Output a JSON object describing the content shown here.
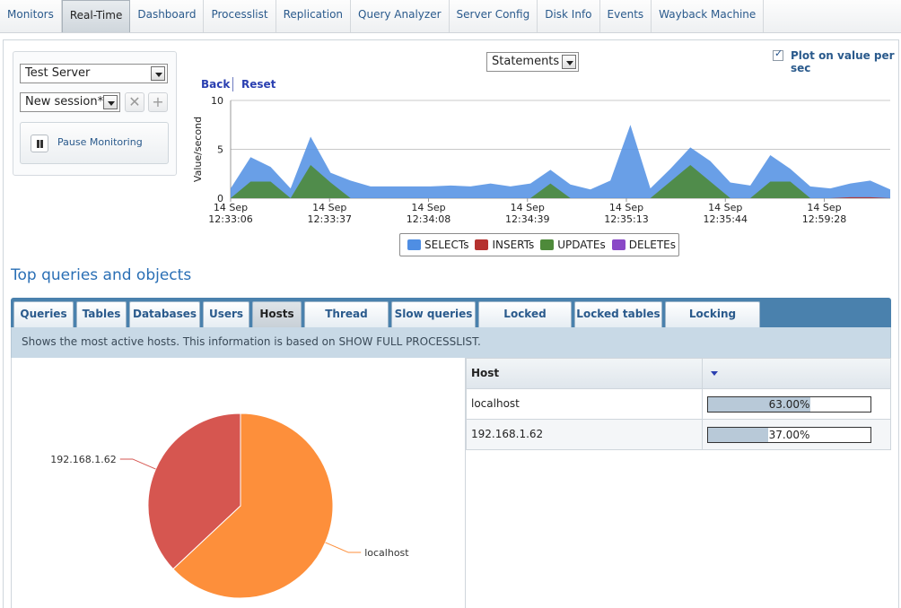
{
  "nav": {
    "items": [
      {
        "label": "Monitors"
      },
      {
        "label": "Real-Time",
        "active": true
      },
      {
        "label": "Dashboard"
      },
      {
        "label": "Processlist"
      },
      {
        "label": "Replication"
      },
      {
        "label": "Query Analyzer"
      },
      {
        "label": "Server Config"
      },
      {
        "label": "Disk Info"
      },
      {
        "label": "Events"
      },
      {
        "label": "Wayback Machine"
      }
    ]
  },
  "controls": {
    "server_select": "Test Server",
    "session_select": "New session*",
    "delete_icon": "close-icon",
    "add_icon": "plus-icon",
    "pause_label": "Pause Monitoring"
  },
  "chart_header": {
    "statements_select": "Statements",
    "plot_checkbox_checked": true,
    "plot_label": "Plot on value per sec",
    "back_link": "Back",
    "reset_link": "Reset"
  },
  "chart_data": {
    "type": "area",
    "ylabel": "Value/second",
    "ylim": [
      0,
      10
    ],
    "y_ticks": [
      "0",
      "5",
      "10"
    ],
    "x_ticks": [
      {
        "date": "14 Sep",
        "time": "12:33:06"
      },
      {
        "date": "14 Sep",
        "time": "12:33:37"
      },
      {
        "date": "14 Sep",
        "time": "12:34:08"
      },
      {
        "date": "14 Sep",
        "time": "12:34:39"
      },
      {
        "date": "14 Sep",
        "time": "12:35:13"
      },
      {
        "date": "14 Sep",
        "time": "12:35:44"
      },
      {
        "date": "14 Sep",
        "time": "12:59:28"
      }
    ],
    "series": [
      {
        "name": "SELECTs",
        "color": "#4f8ee3",
        "values": [
          1.0,
          4.2,
          3.2,
          1.0,
          6.3,
          2.6,
          1.8,
          1.2,
          1.2,
          1.2,
          1.2,
          1.3,
          1.2,
          1.5,
          1.2,
          1.5,
          2.9,
          1.4,
          0.9,
          1.8,
          7.5,
          1.0,
          3.0,
          5.2,
          3.8,
          1.6,
          1.3,
          4.4,
          3.0,
          1.2,
          1.0,
          1.5,
          1.8,
          0.9
        ]
      },
      {
        "name": "INSERTs",
        "color": "#b5322f",
        "values": [
          0,
          0,
          0,
          0,
          0,
          0,
          0,
          0,
          0,
          0,
          0,
          0,
          0,
          0,
          0,
          0,
          0,
          0,
          0,
          0,
          0,
          0,
          0,
          0,
          0,
          0,
          0,
          0,
          0,
          0,
          0,
          0.1,
          0.1,
          0
        ]
      },
      {
        "name": "UPDATEs",
        "color": "#4e8a3a",
        "values": [
          0,
          1.7,
          1.7,
          0,
          3.4,
          1.6,
          0,
          0,
          0,
          0,
          0,
          0,
          0,
          0,
          0,
          0,
          1.5,
          0,
          0,
          0,
          0,
          0,
          1.7,
          3.4,
          1.7,
          0,
          0,
          1.7,
          1.7,
          0,
          0,
          0,
          0,
          0
        ]
      },
      {
        "name": "DELETEs",
        "color": "#8a49c7",
        "values": [
          0,
          0,
          0,
          0,
          0,
          0,
          0,
          0,
          0,
          0,
          0,
          0,
          0,
          0,
          0,
          0,
          0,
          0,
          0,
          0,
          0,
          0,
          0,
          0,
          0,
          0,
          0,
          0,
          0,
          0,
          0,
          0,
          0,
          0
        ]
      }
    ]
  },
  "section_title": "Top queries and objects",
  "tabs": [
    {
      "label": "Queries"
    },
    {
      "label": "Tables"
    },
    {
      "label": "Databases"
    },
    {
      "label": "Users"
    },
    {
      "label": "Hosts",
      "active": true
    },
    {
      "label": "Thread states"
    },
    {
      "label": "Slow queries"
    },
    {
      "label": "Locked queries"
    },
    {
      "label": "Locked tables"
    },
    {
      "label": "Locking queries"
    }
  ],
  "info_text": "Shows the most active hosts. This information is based on SHOW FULL PROCESSLIST.",
  "hosts_table": {
    "header_host": "Host",
    "rows": [
      {
        "host": "localhost",
        "pct": 63.0,
        "pct_label": "63.00%"
      },
      {
        "host": "192.168.1.62",
        "pct": 37.0,
        "pct_label": "37.00%"
      }
    ]
  },
  "pie_data": {
    "type": "pie",
    "slices": [
      {
        "label": "localhost",
        "value": 63.0,
        "color": "#fd8f3b"
      },
      {
        "label": "192.168.1.62",
        "value": 37.0,
        "color": "#d65650"
      }
    ]
  }
}
